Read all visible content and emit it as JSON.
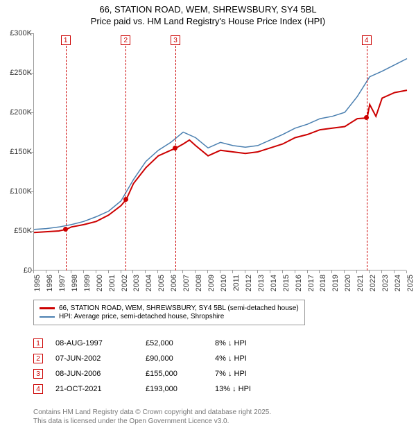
{
  "title_line1": "66, STATION ROAD, WEM, SHREWSBURY, SY4 5BL",
  "title_line2": "Price paid vs. HM Land Registry's House Price Index (HPI)",
  "chart": {
    "type": "line",
    "x_start_year": 1995,
    "x_end_year": 2025,
    "ylim": [
      0,
      300000
    ],
    "ytick_step": 50000,
    "ytick_labels": [
      "£0",
      "£50K",
      "£100K",
      "£150K",
      "£200K",
      "£250K",
      "£300K"
    ],
    "xtick_labels": [
      "1995",
      "1996",
      "1997",
      "1998",
      "1999",
      "2000",
      "2001",
      "2002",
      "2003",
      "2004",
      "2005",
      "2006",
      "2007",
      "2008",
      "2009",
      "2010",
      "2011",
      "2012",
      "2013",
      "2014",
      "2015",
      "2016",
      "2017",
      "2018",
      "2019",
      "2020",
      "2021",
      "2022",
      "2023",
      "2024",
      "2025"
    ],
    "background_color": "#ffffff",
    "grid_color": "#e0e0e0",
    "series": [
      {
        "name": "price_paid",
        "label": "66, STATION ROAD, WEM, SHREWSBURY, SY4 5BL (semi-detached house)",
        "color": "#cc0000",
        "width": 2,
        "points": [
          [
            1995,
            48000
          ],
          [
            1996,
            49000
          ],
          [
            1997,
            50000
          ],
          [
            1997.6,
            52000
          ],
          [
            1998,
            55000
          ],
          [
            1999,
            58000
          ],
          [
            2000,
            62000
          ],
          [
            2001,
            70000
          ],
          [
            2002,
            82000
          ],
          [
            2002.43,
            90000
          ],
          [
            2003,
            110000
          ],
          [
            2004,
            130000
          ],
          [
            2005,
            145000
          ],
          [
            2006,
            152000
          ],
          [
            2006.43,
            155000
          ],
          [
            2007,
            160000
          ],
          [
            2007.5,
            165000
          ],
          [
            2008,
            158000
          ],
          [
            2009,
            145000
          ],
          [
            2010,
            152000
          ],
          [
            2011,
            150000
          ],
          [
            2012,
            148000
          ],
          [
            2013,
            150000
          ],
          [
            2014,
            155000
          ],
          [
            2015,
            160000
          ],
          [
            2016,
            168000
          ],
          [
            2017,
            172000
          ],
          [
            2018,
            178000
          ],
          [
            2019,
            180000
          ],
          [
            2020,
            182000
          ],
          [
            2021,
            192000
          ],
          [
            2021.8,
            193000
          ],
          [
            2022,
            210000
          ],
          [
            2022.5,
            195000
          ],
          [
            2023,
            218000
          ],
          [
            2024,
            225000
          ],
          [
            2025,
            228000
          ]
        ]
      },
      {
        "name": "hpi",
        "label": "HPI: Average price, semi-detached house, Shropshire",
        "color": "#4a7fb0",
        "width": 1.5,
        "points": [
          [
            1995,
            52000
          ],
          [
            1996,
            53000
          ],
          [
            1997,
            55000
          ],
          [
            1998,
            58000
          ],
          [
            1999,
            62000
          ],
          [
            2000,
            68000
          ],
          [
            2001,
            75000
          ],
          [
            2002,
            88000
          ],
          [
            2003,
            115000
          ],
          [
            2004,
            138000
          ],
          [
            2005,
            152000
          ],
          [
            2006,
            162000
          ],
          [
            2007,
            175000
          ],
          [
            2008,
            168000
          ],
          [
            2009,
            155000
          ],
          [
            2010,
            162000
          ],
          [
            2011,
            158000
          ],
          [
            2012,
            156000
          ],
          [
            2013,
            158000
          ],
          [
            2014,
            165000
          ],
          [
            2015,
            172000
          ],
          [
            2016,
            180000
          ],
          [
            2017,
            185000
          ],
          [
            2018,
            192000
          ],
          [
            2019,
            195000
          ],
          [
            2020,
            200000
          ],
          [
            2021,
            220000
          ],
          [
            2022,
            245000
          ],
          [
            2023,
            252000
          ],
          [
            2024,
            260000
          ],
          [
            2025,
            268000
          ]
        ]
      }
    ],
    "markers": [
      {
        "n": "1",
        "color": "#cc0000",
        "year": 1997.6,
        "value": 52000
      },
      {
        "n": "2",
        "color": "#cc0000",
        "year": 2002.43,
        "value": 90000
      },
      {
        "n": "3",
        "color": "#cc0000",
        "year": 2006.43,
        "value": 155000
      },
      {
        "n": "4",
        "color": "#cc0000",
        "year": 2021.8,
        "value": 193000
      }
    ]
  },
  "transactions": [
    {
      "n": "1",
      "date": "08-AUG-1997",
      "price": "£52,000",
      "pct": "8%",
      "dir": "↓",
      "suffix": "HPI",
      "color": "#cc0000"
    },
    {
      "n": "2",
      "date": "07-JUN-2002",
      "price": "£90,000",
      "pct": "4%",
      "dir": "↓",
      "suffix": "HPI",
      "color": "#cc0000"
    },
    {
      "n": "3",
      "date": "08-JUN-2006",
      "price": "£155,000",
      "pct": "7%",
      "dir": "↓",
      "suffix": "HPI",
      "color": "#cc0000"
    },
    {
      "n": "4",
      "date": "21-OCT-2021",
      "price": "£193,000",
      "pct": "13%",
      "dir": "↓",
      "suffix": "HPI",
      "color": "#cc0000"
    }
  ],
  "footer_line1": "Contains HM Land Registry data © Crown copyright and database right 2025.",
  "footer_line2": "This data is licensed under the Open Government Licence v3.0."
}
